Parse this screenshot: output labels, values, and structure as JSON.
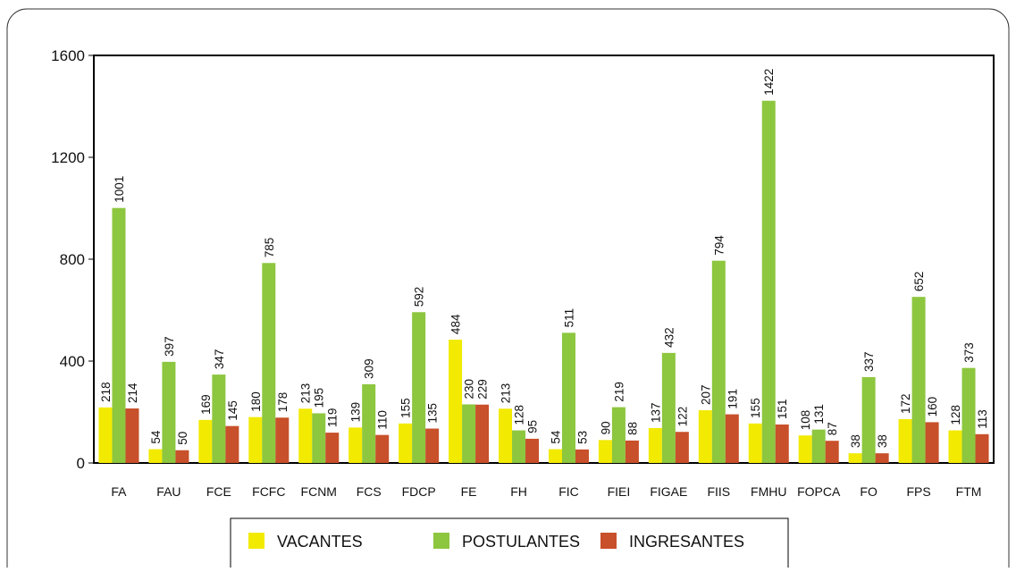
{
  "chart_data": {
    "type": "bar",
    "categories": [
      "FA",
      "FAU",
      "FCE",
      "FCFC",
      "FCNM",
      "FCS",
      "FDCP",
      "FE",
      "FH",
      "FIC",
      "FIEI",
      "FIGAE",
      "FIIS",
      "FMHU",
      "FOPCA",
      "FO",
      "FPS",
      "FTM"
    ],
    "series": [
      {
        "name": "VACANTES",
        "color": "#f2ea00",
        "values": [
          218,
          54,
          169,
          180,
          213,
          139,
          155,
          484,
          213,
          54,
          90,
          137,
          207,
          155,
          108,
          38,
          172,
          128
        ]
      },
      {
        "name": "POSTULANTES",
        "color": "#8dc63f",
        "values": [
          1001,
          397,
          347,
          785,
          195,
          309,
          592,
          230,
          128,
          511,
          219,
          432,
          794,
          1422,
          131,
          337,
          652,
          373
        ]
      },
      {
        "name": "INGRESANTES",
        "color": "#c8502a",
        "values": [
          214,
          50,
          145,
          178,
          119,
          110,
          135,
          229,
          95,
          53,
          88,
          122,
          191,
          151,
          87,
          38,
          160,
          113
        ]
      }
    ],
    "ylim": [
      0,
      1600
    ],
    "yticks": [
      0,
      400,
      800,
      1200,
      1600
    ],
    "grid": false,
    "legend": "bottom"
  }
}
